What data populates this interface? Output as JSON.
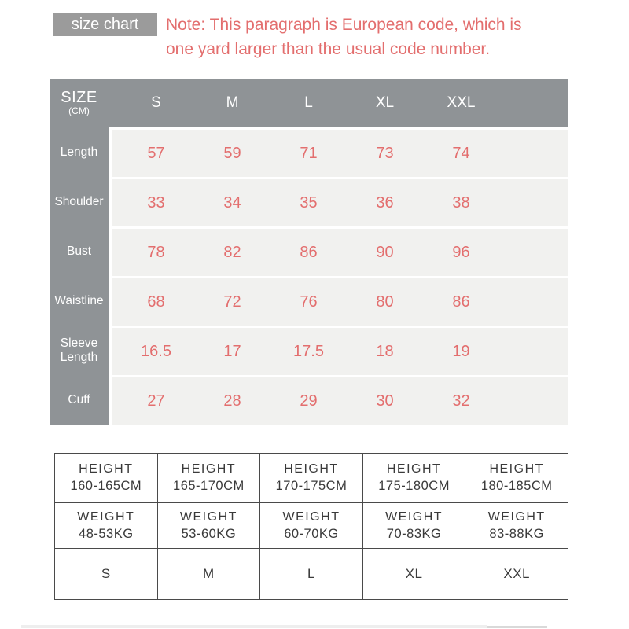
{
  "header": {
    "badge": "size chart",
    "note_line1": "Note: This paragraph is European code, which is",
    "note_line2": "one yard larger than the usual code number."
  },
  "size_table": {
    "corner_title": "SIZE",
    "corner_unit": "(CM)",
    "columns": [
      "S",
      "M",
      "L",
      "XL",
      "XXL"
    ],
    "rows": [
      {
        "label": "Length",
        "values": [
          "57",
          "59",
          "71",
          "73",
          "74"
        ]
      },
      {
        "label": "Shoulder",
        "values": [
          "33",
          "34",
          "35",
          "36",
          "38"
        ]
      },
      {
        "label": "Bust",
        "values": [
          "78",
          "82",
          "86",
          "90",
          "96"
        ]
      },
      {
        "label": "Waistline",
        "values": [
          "68",
          "72",
          "76",
          "80",
          "86"
        ]
      },
      {
        "label": "Sleeve Length",
        "values": [
          "16.5",
          "17",
          "17.5",
          "18",
          "19"
        ]
      },
      {
        "label": "Cuff",
        "values": [
          "27",
          "28",
          "29",
          "30",
          "32"
        ]
      }
    ]
  },
  "fit_table": {
    "height_label": "HEIGHT",
    "weight_label": "WEIGHT",
    "columns": [
      {
        "height": "160-165CM",
        "weight": "48-53KG",
        "size": "S"
      },
      {
        "height": "165-170CM",
        "weight": "53-60KG",
        "size": "M"
      },
      {
        "height": "170-175CM",
        "weight": "60-70KG",
        "size": "L"
      },
      {
        "height": "175-180CM",
        "weight": "70-83KG",
        "size": "XL"
      },
      {
        "height": "180-185CM",
        "weight": "83-88KG",
        "size": "XXL"
      }
    ]
  },
  "colors": {
    "table_gray": "#8f9396",
    "badge_gray": "#9b9b9b",
    "accent_salmon": "#e36e6e",
    "row_background": "#f1f1ef",
    "fit_table_border": "#4a4a4a",
    "fit_table_text": "#3a3a3a"
  }
}
